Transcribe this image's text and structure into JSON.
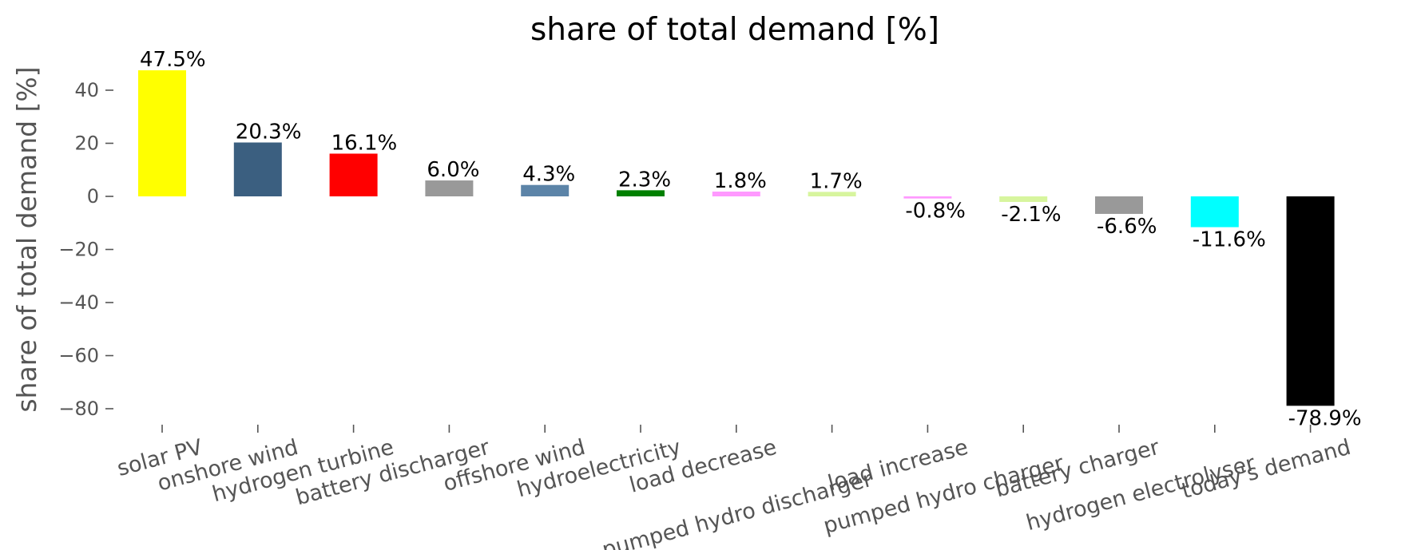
{
  "chart_data": {
    "type": "bar",
    "title": "share of total demand [%]",
    "xlabel": "",
    "ylabel": "share of total demand [%]",
    "ylim": [
      -87,
      52
    ],
    "yticks": [
      40,
      20,
      0,
      -20,
      -40,
      -60,
      -80
    ],
    "ytick_labels": [
      "40",
      "20",
      "0",
      "−20",
      "−40",
      "−60",
      "−80"
    ],
    "grid": false,
    "legend": "none",
    "categories": [
      "solar PV",
      "onshore wind",
      "hydrogen turbine",
      "battery discharger",
      "offshore wind",
      "hydroelectricity",
      "load decrease",
      "pumped hydro discharger",
      "load increase",
      "pumped hydro charger",
      "battery charger",
      "hydrogen electrolyser",
      "today's demand"
    ],
    "values": [
      47.5,
      20.3,
      16.1,
      6.0,
      4.3,
      2.3,
      1.8,
      1.7,
      -0.8,
      -2.1,
      -6.6,
      -11.6,
      -78.9
    ],
    "data_labels": [
      "47.5%",
      "20.3%",
      "16.1%",
      "6.0%",
      "4.3%",
      "2.3%",
      "1.8%",
      "1.7%",
      "-0.8%",
      "-2.1%",
      "-6.6%",
      "-11.6%",
      "-78.9%"
    ],
    "colors": [
      "#ffff00",
      "#3b5f80",
      "#ff0000",
      "#999999",
      "#5c84a8",
      "#008000",
      "#ff99ff",
      "#d7f59e",
      "#ff99ff",
      "#d7f59e",
      "#999999",
      "#00ffff",
      "#000000"
    ]
  }
}
